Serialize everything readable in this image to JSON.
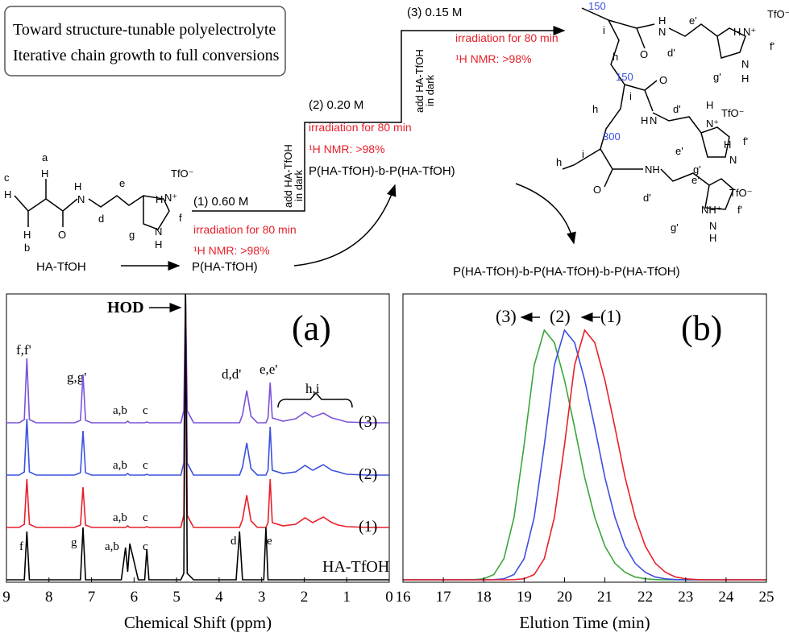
{
  "scheme": {
    "box": [
      "Toward structure-tunable polyelectrolyte",
      "Iterative chain growth to full conversions"
    ],
    "steps": [
      {
        "concentration": "(1) 0.60 M",
        "condition": "irradiation for 80 min",
        "nmr": "¹H NMR: >98%"
      },
      {
        "concentration": "(2) 0.20 M",
        "condition": "irradiation for 80 min",
        "nmr": "¹H NMR: >98%"
      },
      {
        "concentration": "(3) 0.15 M",
        "condition": "irradiation for 80 min",
        "nmr": "¹H NMR: >98%"
      }
    ],
    "additions": [
      [
        "add HA-TfOH",
        "in dark"
      ],
      [
        "add HA-TfOH",
        "in dark"
      ]
    ],
    "products": [
      "HA-TfOH",
      "P(HA-TfOH)",
      "P(HA-TfOH)-b-P(HA-TfOH)",
      "P(HA-TfOH)-b-P(HA-TfOH)-b-P(HA-TfOH)"
    ],
    "monomer_labels": [
      "a",
      "H",
      "c",
      "H",
      "H",
      "b",
      "N",
      "H",
      "O",
      "e",
      "d",
      "g",
      "f",
      "TfO⁻",
      "N⁺",
      "H",
      "N",
      "H"
    ],
    "polymer_labels": [
      "150",
      "TfO⁻",
      "i",
      "O",
      "N",
      "H",
      "e'",
      "d'",
      "N⁺",
      "H",
      "f'",
      "g'",
      "N",
      "H",
      "h",
      "150",
      "i",
      "h",
      "O",
      "H",
      "N",
      "d'",
      "TfO⁻",
      "N⁺",
      "H",
      "e'",
      "f'",
      "g'",
      "N",
      "H",
      "300",
      "i",
      "h",
      "O",
      "NH",
      "d'",
      "e'",
      "TfO⁻",
      "NH⁺",
      "f'",
      "g'",
      "N",
      "H"
    ]
  },
  "chart_data": [
    {
      "type": "line",
      "xlabel": "Chemical Shift (ppm)",
      "xlim": [
        9,
        0
      ],
      "xticks": [
        9,
        8,
        7,
        6,
        5,
        4,
        3,
        2,
        1,
        0
      ],
      "annotations": [
        "HOD",
        "(a)",
        "f,f'",
        "g,g'",
        "a,b",
        "c",
        "d,d'",
        "e,e'",
        "h,i",
        "a,b",
        "c",
        "a,b",
        "c",
        "f",
        "g",
        "a,b",
        "c",
        "d",
        "e"
      ],
      "x": [
        9,
        8.7,
        8.58,
        8.52,
        8.46,
        8.3,
        7.4,
        7.26,
        7.2,
        7.14,
        7.0,
        6.3,
        6.2,
        6.15,
        6.1,
        5.9,
        5.75,
        5.7,
        5.65,
        5.3,
        4.9,
        4.83,
        4.79,
        4.75,
        4.6,
        4.0,
        3.6,
        3.52,
        3.45,
        3.35,
        3.25,
        3.1,
        2.95,
        2.9,
        2.85,
        2.8,
        2.75,
        2.5,
        2.2,
        1.98,
        1.8,
        1.55,
        1.35,
        1.2,
        1.0,
        0.5,
        0
      ],
      "series": [
        {
          "name": "(3)",
          "color": "#7b52d9",
          "values": [
            0,
            0,
            4,
            80,
            4,
            0,
            0,
            3,
            60,
            3,
            0,
            0,
            0,
            2,
            0,
            0,
            0,
            1,
            0,
            0,
            0,
            15,
            160,
            15,
            0,
            0,
            0,
            0,
            10,
            40,
            8,
            0,
            0,
            0,
            6,
            50,
            6,
            2,
            5,
            13,
            7,
            12,
            6,
            4,
            1,
            0,
            0
          ]
        },
        {
          "name": "(2)",
          "color": "#3b50e0",
          "values": [
            0,
            0,
            4,
            70,
            4,
            0,
            0,
            3,
            55,
            3,
            0,
            0,
            0,
            2,
            0,
            0,
            0,
            1,
            0,
            0,
            0,
            15,
            225,
            15,
            0,
            0,
            0,
            0,
            10,
            40,
            8,
            0,
            0,
            0,
            6,
            60,
            6,
            2,
            4,
            12,
            6,
            13,
            6,
            4,
            1,
            0,
            0
          ]
        },
        {
          "name": "(1)",
          "color": "#e8202a",
          "values": [
            0,
            0,
            4,
            60,
            4,
            0,
            0,
            3,
            50,
            3,
            0,
            0,
            0,
            2,
            0,
            0,
            0,
            1,
            0,
            0,
            0,
            15,
            290,
            15,
            0,
            0,
            0,
            0,
            10,
            40,
            8,
            0,
            0,
            0,
            6,
            60,
            6,
            2,
            4,
            12,
            6,
            13,
            6,
            3,
            1,
            0,
            0
          ]
        },
        {
          "name": "HA-TfOH",
          "color": "#000000",
          "values": [
            0,
            0,
            0,
            60,
            0,
            0,
            0,
            0,
            65,
            0,
            0,
            0,
            40,
            10,
            45,
            0,
            0,
            38,
            0,
            0,
            0,
            8,
            355,
            8,
            0,
            0,
            0,
            60,
            0,
            0,
            0,
            0,
            0,
            65,
            0,
            0,
            0,
            0,
            0,
            0,
            0,
            0,
            0,
            0,
            0,
            0,
            0
          ]
        }
      ]
    },
    {
      "type": "line",
      "xlabel": "Elution Time (min)",
      "xlim": [
        16,
        25
      ],
      "xticks": [
        16,
        17,
        18,
        19,
        20,
        21,
        22,
        23,
        24,
        25
      ],
      "annotations": [
        "(b)"
      ],
      "x": [
        16,
        17.5,
        17.75,
        18,
        18.25,
        18.5,
        18.75,
        19,
        19.25,
        19.5,
        19.75,
        20,
        20.25,
        20.5,
        20.75,
        21,
        21.25,
        21.5,
        21.75,
        22,
        22.25,
        22.5,
        22.75,
        23,
        23.25,
        23.5,
        25
      ],
      "series": [
        {
          "name": "(3)",
          "color": "#3aa63a",
          "values": [
            0,
            0,
            0.0005,
            0.004,
            0.021,
            0.085,
            0.25,
            0.54,
            0.86,
            1,
            0.95,
            0.8,
            0.61,
            0.41,
            0.25,
            0.135,
            0.066,
            0.03,
            0.011,
            0.004,
            0.001,
            0,
            0,
            0,
            0,
            0,
            0
          ]
        },
        {
          "name": "(2)",
          "color": "#3b50e0",
          "values": [
            0,
            0,
            0,
            0,
            0.0005,
            0.004,
            0.021,
            0.085,
            0.25,
            0.54,
            0.86,
            1,
            0.95,
            0.8,
            0.61,
            0.41,
            0.25,
            0.135,
            0.066,
            0.03,
            0.011,
            0.004,
            0.001,
            0,
            0,
            0,
            0
          ]
        },
        {
          "name": "(1)",
          "color": "#e8202a",
          "values": [
            0,
            0,
            0,
            0,
            0,
            0,
            0.0005,
            0.004,
            0.021,
            0.085,
            0.25,
            0.54,
            0.86,
            1,
            0.95,
            0.8,
            0.61,
            0.41,
            0.25,
            0.135,
            0.066,
            0.03,
            0.011,
            0.004,
            0.001,
            0,
            0
          ]
        }
      ]
    }
  ]
}
